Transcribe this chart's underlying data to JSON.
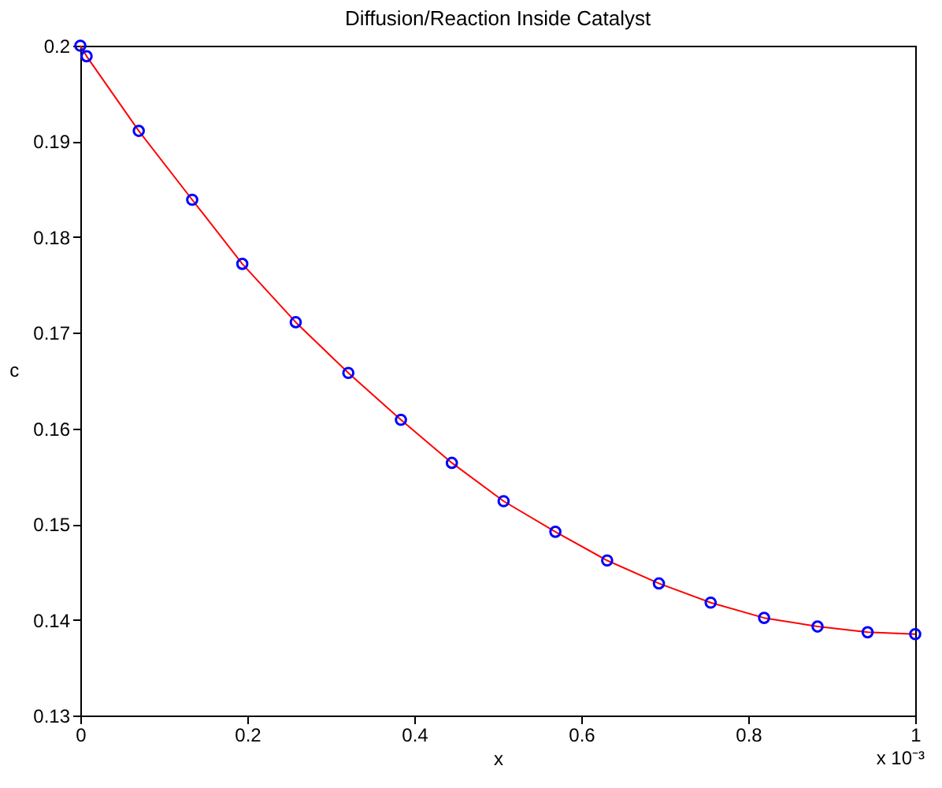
{
  "chart_data": {
    "type": "line",
    "title": "Diffusion/Reaction Inside Catalyst",
    "xlabel": "x",
    "ylabel": "c",
    "x": [
      0,
      0.0075,
      0.07,
      0.134,
      0.194,
      0.258,
      0.321,
      0.384,
      0.445,
      0.507,
      0.569,
      0.631,
      0.693,
      0.755,
      0.819,
      0.883,
      0.943,
      1.0
    ],
    "series": [
      {
        "color": "#ff0000",
        "marker": "none",
        "line_style": "solid",
        "values": [
          0.2,
          0.1989,
          0.1911,
          0.1839,
          0.1772,
          0.1711,
          0.1658,
          0.1609,
          0.1564,
          0.1524,
          0.1492,
          0.1462,
          0.1438,
          0.1418,
          0.1402,
          0.1393,
          0.1387,
          0.1385
        ]
      },
      {
        "type": "scatter",
        "color": "#0000ff",
        "marker": "circle",
        "values": [
          0.2,
          0.1989,
          0.1911,
          0.1839,
          0.1772,
          0.1711,
          0.1658,
          0.1609,
          0.1564,
          0.1524,
          0.1492,
          0.1462,
          0.1438,
          0.1418,
          0.1402,
          0.1393,
          0.1387,
          0.1385
        ]
      }
    ],
    "xlim": [
      0,
      1
    ],
    "xticks": [
      0,
      0.2,
      0.4,
      0.6,
      0.8,
      1
    ],
    "ylim": [
      0.13,
      0.2
    ],
    "yticks": [
      0.13,
      0.14,
      0.15,
      0.16,
      0.17,
      0.18,
      0.19,
      0.2
    ],
    "grid": false,
    "legend": false,
    "annotations": [
      "x 10⁻³"
    ]
  }
}
